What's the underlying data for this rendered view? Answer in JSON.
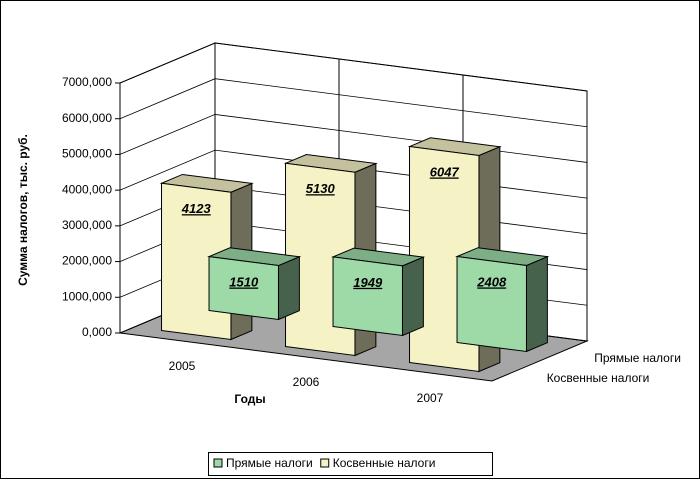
{
  "chart_data": {
    "type": "bar3d",
    "y_axis_title": "Сумма налогов, тыс. руб.",
    "x_axis_title": "Годы",
    "categories": [
      "2005",
      "2006",
      "2007"
    ],
    "series": [
      {
        "name": "Прямые налоги",
        "color": "#9ed9a8",
        "values": [
          1510,
          1949,
          2408
        ]
      },
      {
        "name": "Косвенные налоги",
        "color": "#f5f3c6",
        "values": [
          4123,
          5130,
          6047
        ]
      }
    ],
    "ylim": [
      0,
      7000
    ],
    "yticks": [
      {
        "value": 0,
        "label": "0,000"
      },
      {
        "value": 1000,
        "label": "1000,000"
      },
      {
        "value": 2000,
        "label": "2000,000"
      },
      {
        "value": 3000,
        "label": "3000,000"
      },
      {
        "value": 4000,
        "label": "4000,000"
      },
      {
        "value": 5000,
        "label": "5000,000"
      },
      {
        "value": 6000,
        "label": "6000,000"
      },
      {
        "value": 7000,
        "label": "7000,000"
      }
    ],
    "grid": true,
    "legend": "bottom"
  }
}
